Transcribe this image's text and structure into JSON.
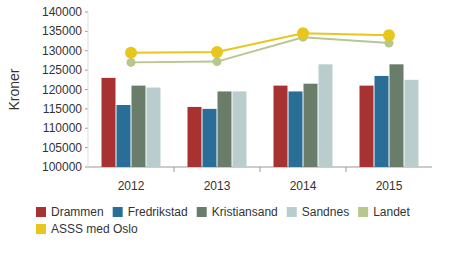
{
  "chart_data": {
    "type": "bar",
    "y_label": "Kroner",
    "categories": [
      "2012",
      "2013",
      "2014",
      "2015"
    ],
    "series": [
      {
        "name": "Drammen",
        "color": "#a63232",
        "values": [
          123000,
          115500,
          121000,
          121000
        ]
      },
      {
        "name": "Fredrikstad",
        "color": "#2a6e98",
        "values": [
          116000,
          115000,
          119500,
          123500
        ]
      },
      {
        "name": "Kristiansand",
        "color": "#6a7d6a",
        "values": [
          121000,
          119500,
          121500,
          126500
        ]
      },
      {
        "name": "Sandnes",
        "color": "#b9cdcd",
        "values": [
          120500,
          119500,
          126500,
          122500
        ]
      },
      {
        "name": "Landet",
        "color": "#b7c78f",
        "type": "line",
        "marker": "circle",
        "values": [
          127000,
          127200,
          133500,
          132000
        ]
      },
      {
        "name": "ASSS med Oslo",
        "color": "#e8c61e",
        "type": "line",
        "marker": "circle",
        "values": [
          129500,
          129700,
          134500,
          134000
        ]
      }
    ],
    "ylim": [
      100000,
      140000
    ],
    "yticks": [
      100000,
      105000,
      110000,
      115000,
      120000,
      125000,
      130000,
      135000,
      140000
    ],
    "grid": false,
    "legend": "bottom"
  }
}
